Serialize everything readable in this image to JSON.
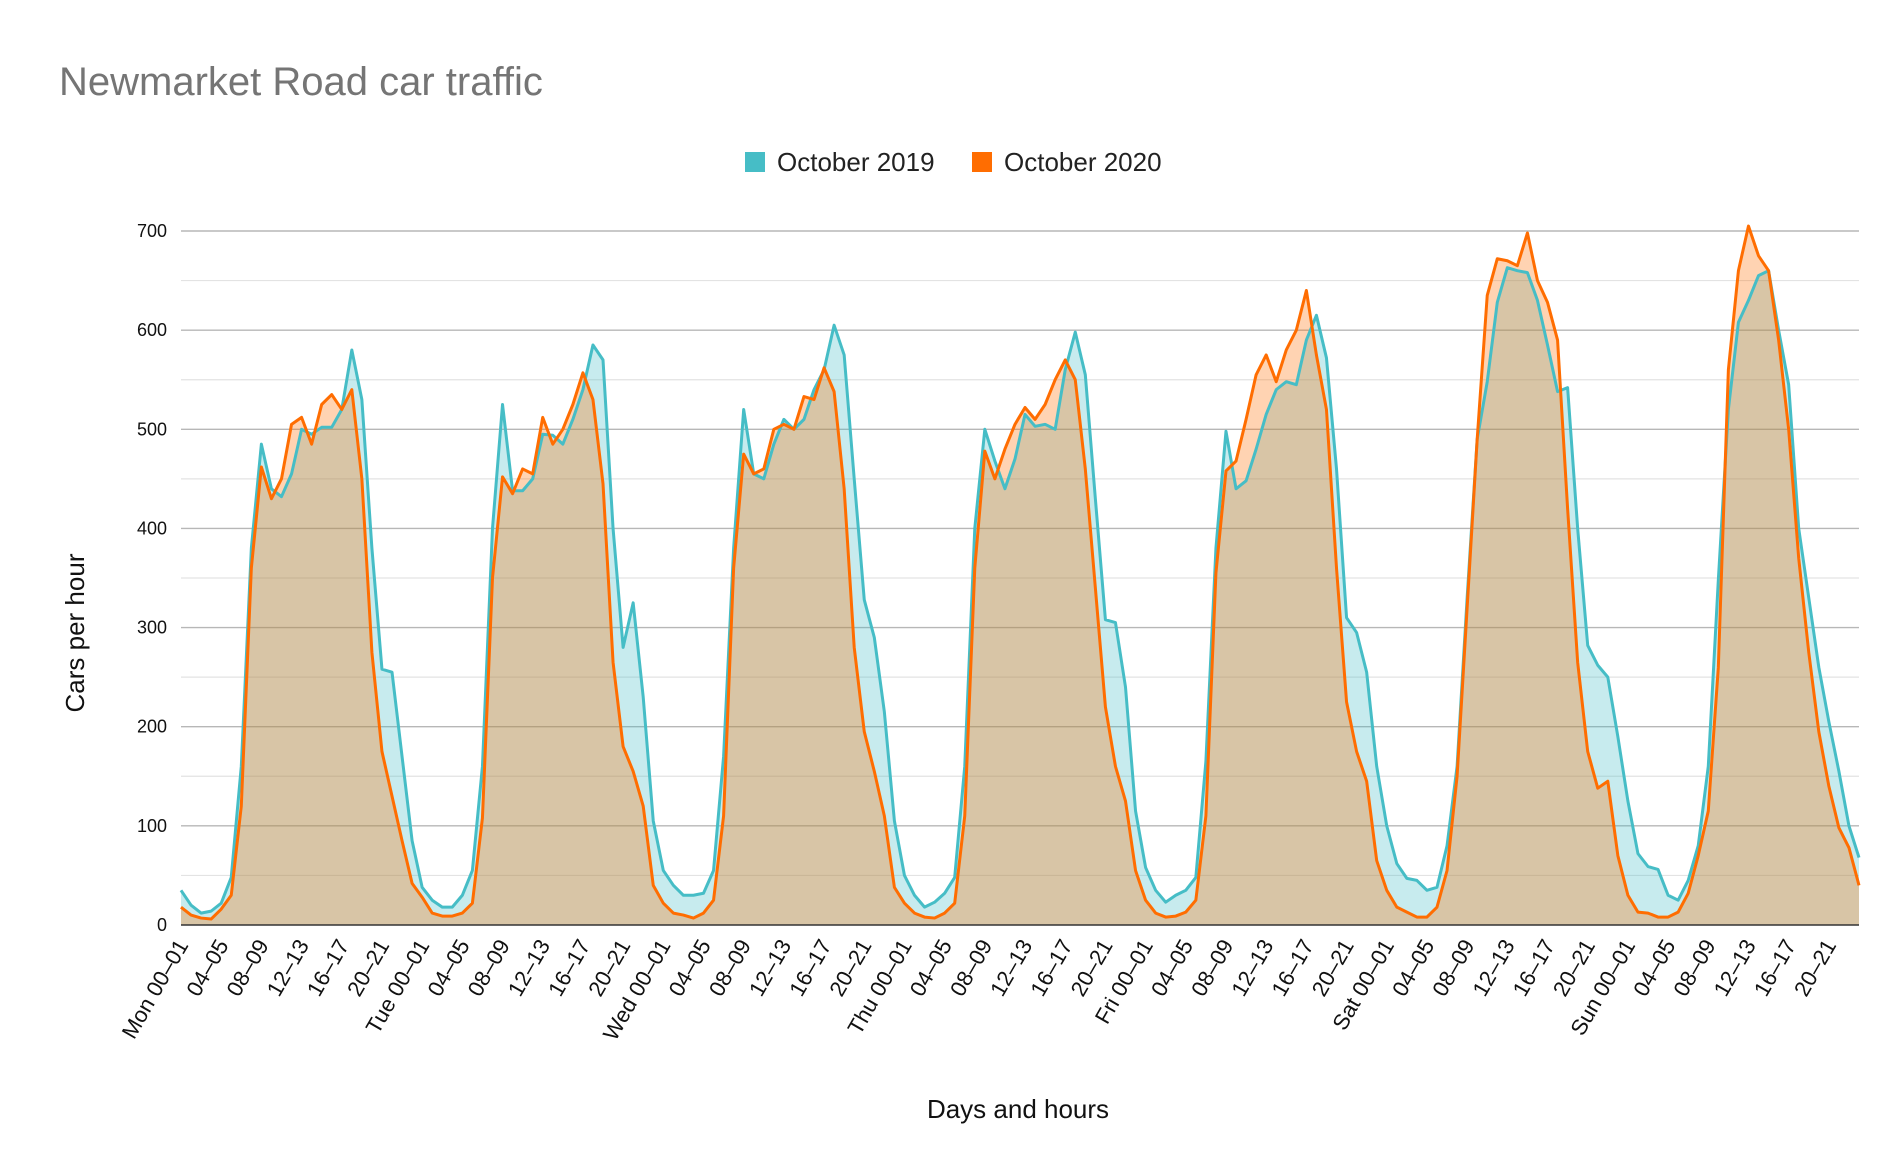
{
  "chart_data": {
    "type": "area",
    "title": "Newmarket Road car traffic",
    "xlabel": "Days and hours",
    "ylabel": "Cars per hour",
    "ylim": [
      0,
      700
    ],
    "y_ticks": [
      "0",
      "100",
      "200",
      "300",
      "400",
      "500",
      "600",
      "700"
    ],
    "y_tick_values": [
      0,
      100,
      200,
      300,
      400,
      500,
      600,
      700
    ],
    "minor_gridlines": true,
    "legend_position": "top-center",
    "x_tick_labels": [
      {
        "index": 0,
        "label": "Mon 00–01"
      },
      {
        "index": 4,
        "label": "04–05"
      },
      {
        "index": 8,
        "label": "08–09"
      },
      {
        "index": 12,
        "label": "12–13"
      },
      {
        "index": 16,
        "label": "16–17"
      },
      {
        "index": 20,
        "label": "20–21"
      },
      {
        "index": 24,
        "label": "Tue 00–01"
      },
      {
        "index": 28,
        "label": "04–05"
      },
      {
        "index": 32,
        "label": "08–09"
      },
      {
        "index": 36,
        "label": "12–13"
      },
      {
        "index": 40,
        "label": "16–17"
      },
      {
        "index": 44,
        "label": "20–21"
      },
      {
        "index": 48,
        "label": "Wed 00–01"
      },
      {
        "index": 52,
        "label": "04–05"
      },
      {
        "index": 56,
        "label": "08–09"
      },
      {
        "index": 60,
        "label": "12–13"
      },
      {
        "index": 64,
        "label": "16–17"
      },
      {
        "index": 68,
        "label": "20–21"
      },
      {
        "index": 72,
        "label": "Thu 00–01"
      },
      {
        "index": 76,
        "label": "04–05"
      },
      {
        "index": 80,
        "label": "08–09"
      },
      {
        "index": 84,
        "label": "12–13"
      },
      {
        "index": 88,
        "label": "16–17"
      },
      {
        "index": 92,
        "label": "20–21"
      },
      {
        "index": 96,
        "label": "Fri 00–01"
      },
      {
        "index": 100,
        "label": "04–05"
      },
      {
        "index": 104,
        "label": "08–09"
      },
      {
        "index": 108,
        "label": "12–13"
      },
      {
        "index": 112,
        "label": "16–17"
      },
      {
        "index": 116,
        "label": "20–21"
      },
      {
        "index": 120,
        "label": "Sat 00–01"
      },
      {
        "index": 124,
        "label": "04–05"
      },
      {
        "index": 128,
        "label": "08–09"
      },
      {
        "index": 132,
        "label": "12–13"
      },
      {
        "index": 136,
        "label": "16–17"
      },
      {
        "index": 140,
        "label": "20–21"
      },
      {
        "index": 144,
        "label": "Sun 00–01"
      },
      {
        "index": 148,
        "label": "04–05"
      },
      {
        "index": 152,
        "label": "08–09"
      },
      {
        "index": 156,
        "label": "12–13"
      },
      {
        "index": 160,
        "label": "16–17"
      },
      {
        "index": 164,
        "label": "20–21"
      }
    ],
    "series": [
      {
        "name": "October 2019",
        "color": "#46bdc6",
        "fill": "rgba(70,189,198,0.30)",
        "values": [
          35,
          20,
          12,
          14,
          22,
          48,
          160,
          380,
          485,
          440,
          432,
          455,
          500,
          495,
          502,
          502,
          520,
          580,
          530,
          380,
          258,
          255,
          170,
          85,
          38,
          25,
          18,
          18,
          30,
          55,
          160,
          400,
          525,
          438,
          438,
          450,
          495,
          494,
          485,
          510,
          540,
          585,
          570,
          400,
          280,
          325,
          230,
          105,
          55,
          40,
          30,
          30,
          32,
          55,
          170,
          380,
          520,
          455,
          450,
          485,
          510,
          500,
          510,
          540,
          560,
          605,
          575,
          450,
          328,
          290,
          215,
          105,
          50,
          30,
          18,
          23,
          32,
          48,
          160,
          400,
          500,
          468,
          440,
          470,
          515,
          503,
          505,
          500,
          560,
          598,
          555,
          430,
          308,
          305,
          240,
          115,
          58,
          35,
          23,
          30,
          35,
          48,
          165,
          380,
          498,
          440,
          448,
          480,
          515,
          540,
          548,
          545,
          590,
          615,
          572,
          460,
          310,
          295,
          255,
          160,
          100,
          62,
          47,
          45,
          35,
          38,
          80,
          160,
          330,
          490,
          548,
          628,
          663,
          660,
          658,
          630,
          585,
          538,
          542,
          400,
          282,
          262,
          250,
          190,
          125,
          72,
          59,
          56,
          30,
          25,
          45,
          80,
          160,
          348,
          520,
          608,
          630,
          655,
          660,
          600,
          545,
          400,
          330,
          260,
          205,
          155,
          100,
          68
        ]
      },
      {
        "name": "October 2020",
        "color": "#ff6d01",
        "fill": "rgba(255,109,1,0.30)",
        "values": [
          18,
          10,
          7,
          6,
          16,
          30,
          120,
          360,
          462,
          430,
          450,
          505,
          512,
          485,
          525,
          535,
          520,
          540,
          450,
          275,
          175,
          130,
          85,
          42,
          28,
          12,
          9,
          9,
          12,
          22,
          108,
          350,
          452,
          435,
          460,
          455,
          512,
          485,
          500,
          525,
          557,
          530,
          445,
          265,
          180,
          155,
          120,
          40,
          22,
          12,
          10,
          7,
          12,
          25,
          110,
          360,
          475,
          455,
          460,
          500,
          505,
          500,
          533,
          530,
          562,
          538,
          440,
          280,
          195,
          155,
          110,
          38,
          22,
          12,
          8,
          7,
          12,
          22,
          110,
          360,
          478,
          450,
          480,
          505,
          522,
          510,
          525,
          550,
          570,
          550,
          460,
          340,
          220,
          160,
          125,
          55,
          25,
          12,
          8,
          9,
          13,
          25,
          110,
          355,
          458,
          468,
          510,
          555,
          575,
          548,
          580,
          600,
          640,
          575,
          520,
          360,
          225,
          175,
          145,
          65,
          35,
          18,
          13,
          8,
          8,
          18,
          55,
          150,
          320,
          490,
          635,
          672,
          670,
          665,
          698,
          650,
          628,
          590,
          420,
          265,
          175,
          138,
          145,
          70,
          30,
          13,
          12,
          8,
          8,
          13,
          32,
          70,
          115,
          260,
          560,
          660,
          705,
          675,
          660,
          590,
          500,
          370,
          275,
          195,
          140,
          98,
          78,
          40
        ]
      }
    ]
  }
}
